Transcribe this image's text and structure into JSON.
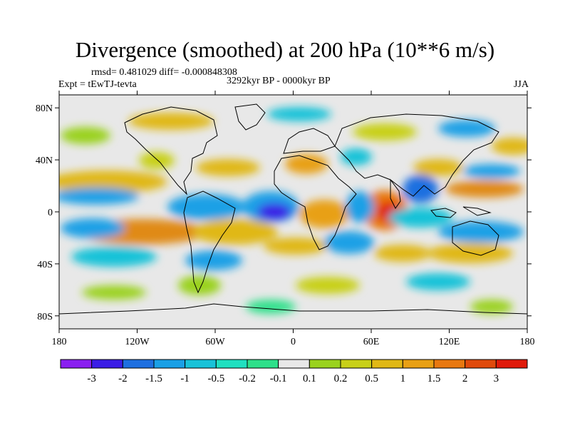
{
  "title": "Divergence (smoothed) at 200 hPa (10**6 m/s)",
  "stats": "rmsd= 0.481029 diff= -0.000848308",
  "left_label": "Expt = tEwTJ-tevta",
  "center_label": "3292kyr BP - 0000kyr BP",
  "right_label": "JJA",
  "lat_ticks": [
    {
      "value": 80,
      "label": "80N"
    },
    {
      "value": 40,
      "label": "40N"
    },
    {
      "value": 0,
      "label": "0"
    },
    {
      "value": -40,
      "label": "40S"
    },
    {
      "value": -80,
      "label": "80S"
    }
  ],
  "lon_ticks": [
    {
      "value": -180,
      "label": "180"
    },
    {
      "value": -120,
      "label": "120W"
    },
    {
      "value": -60,
      "label": "60W"
    },
    {
      "value": 0,
      "label": "0"
    },
    {
      "value": 60,
      "label": "60E"
    },
    {
      "value": 120,
      "label": "120E"
    },
    {
      "value": 180,
      "label": "180"
    }
  ],
  "colorbar": {
    "colors": [
      "#8a1ff0",
      "#3b1de6",
      "#1e6fe0",
      "#1aa0e6",
      "#18c2d8",
      "#1fe0c0",
      "#2ee08a",
      "#e8e8e8",
      "#9ad21e",
      "#c8d018",
      "#e0b816",
      "#e8a014",
      "#e87810",
      "#e04a0c",
      "#e01a0a"
    ],
    "labels": [
      "-3",
      "-2",
      "-1.5",
      "-1",
      "-0.5",
      "-0.2",
      "-0.1",
      "0.1",
      "0.2",
      "0.5",
      "1",
      "1.5",
      "2",
      "3"
    ]
  }
}
